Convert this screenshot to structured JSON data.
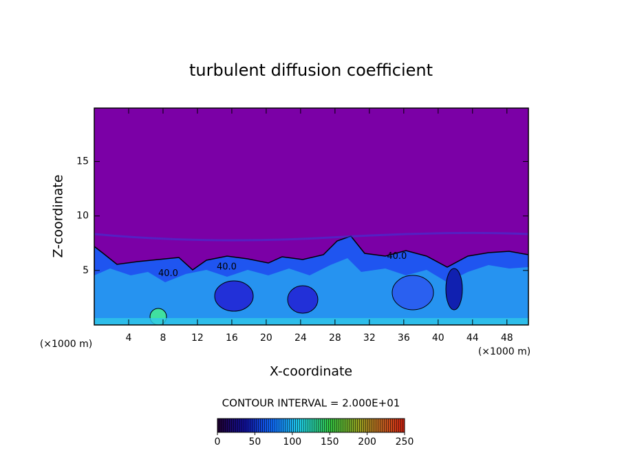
{
  "chart_data": {
    "type": "contour",
    "title": "turbulent diffusion coefficient",
    "x_label": "X-coordinate",
    "y_label": "Z-coordinate",
    "x_unit": "(×1000 m)",
    "y_unit": "(×1000 m)",
    "xlim": [
      0,
      50.5
    ],
    "xticks": [
      4,
      8,
      12,
      16,
      20,
      24,
      28,
      32,
      36,
      40,
      44,
      48
    ],
    "ylim": [
      0,
      19.9
    ],
    "yticks": [
      5,
      10,
      15
    ],
    "contour_labels": [
      {
        "label": "40.0",
        "value": 40,
        "x": 15.4,
        "y": 5.3
      },
      {
        "label": "40.0",
        "value": 40,
        "x": 8.6,
        "y": 4.7
      },
      {
        "label": "40.0",
        "value": 40,
        "x": 35.2,
        "y": 6.3
      }
    ],
    "colorbar": {
      "title": "CONTOUR INTERVAL = 2.000E+01",
      "clim": [
        0,
        250
      ],
      "ticks": [
        0,
        50,
        100,
        150,
        200,
        250
      ]
    }
  }
}
